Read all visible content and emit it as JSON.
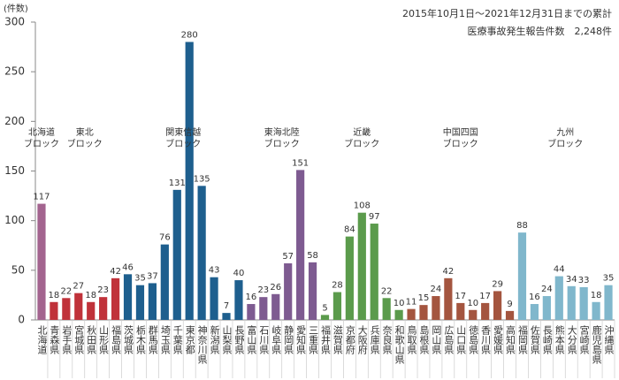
{
  "chart_data": {
    "type": "bar",
    "y_unit": "(件数)",
    "subtitle": "2015年10月1日～2021年12月31日までの累計",
    "title": "医療事故発生報告件数　2,248件",
    "ylim": [
      0,
      300
    ],
    "yticks": [
      0,
      50,
      100,
      150,
      200,
      250,
      300
    ],
    "series": [
      {
        "name": "北海道\nブロック",
        "color": "#a3648f",
        "categories": [
          "北海道"
        ],
        "values": [
          117
        ]
      },
      {
        "name": "東北\nブロック",
        "color": "#c0323a",
        "categories": [
          "青森県",
          "岩手県",
          "宮城県",
          "秋田県",
          "山形県",
          "福島県"
        ],
        "values": [
          18,
          22,
          27,
          18,
          23,
          42
        ]
      },
      {
        "name": "関東信越\nブロック",
        "color": "#1e5f8e",
        "categories": [
          "茨城県",
          "栃木県",
          "群馬県",
          "埼玉県",
          "千葉県",
          "東京都",
          "神奈川県",
          "新潟県",
          "山梨県",
          "長野県"
        ],
        "values": [
          46,
          35,
          37,
          76,
          131,
          280,
          135,
          43,
          7,
          40
        ]
      },
      {
        "name": "東海北陸\nブロック",
        "color": "#7e5b91",
        "categories": [
          "富山県",
          "石川県",
          "岐阜県",
          "静岡県",
          "愛知県",
          "三重県"
        ],
        "values": [
          16,
          23,
          26,
          57,
          151,
          58
        ]
      },
      {
        "name": "近畿\nブロック",
        "color": "#5b9b4c",
        "categories": [
          "福井県",
          "滋賀県",
          "京都府",
          "大阪府",
          "兵庫県",
          "奈良県",
          "和歌山県"
        ],
        "values": [
          5,
          28,
          84,
          108,
          97,
          22,
          10
        ]
      },
      {
        "name": "中国四国\nブロック",
        "color": "#a4553f",
        "categories": [
          "鳥取県",
          "島根県",
          "岡山県",
          "広島県",
          "山口県",
          "徳島県",
          "香川県",
          "愛媛県",
          "高知県"
        ],
        "values": [
          11,
          15,
          24,
          42,
          17,
          10,
          17,
          29,
          9
        ]
      },
      {
        "name": "九州\nブロック",
        "color": "#80b7cc",
        "categories": [
          "福岡県",
          "佐賀県",
          "長崎県",
          "熊本県",
          "大分県",
          "宮崎県",
          "鹿児島県",
          "沖縄県"
        ],
        "values": [
          88,
          16,
          24,
          44,
          34,
          33,
          18,
          35
        ]
      }
    ]
  }
}
